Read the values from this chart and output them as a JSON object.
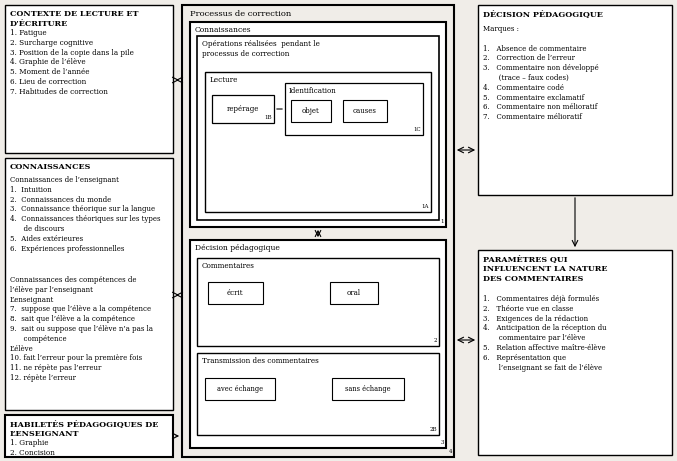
{
  "bg_color": "#f0ede8",
  "fig_width": 6.77,
  "fig_height": 4.61,
  "left_top_box": {
    "title": "CONTEXTE DE LECTURE ET\nD’ÉCRITURE",
    "items": "1. Fatigue\n2. Surcharge cognitive\n3. Position de la copie dans la pile\n4. Graphie de l’élève\n5. Moment de l’année\n6. Lieu de correction\n7. Habitudes de correction"
  },
  "left_mid_box": {
    "title": "CONNAISSANCES",
    "content_a": "Connaissances de l’enseignant\n1.  Intuition\n2.  Connaissances du monde\n3.  Connaissance théorique sur la langue\n4.  Connaissances théoriques sur les types\n      de discours\n5.  Aides extérieures\n6.  Expériences professionnelles",
    "content_b": "Connaissances des compétences de\nl’élève par l’enseignant\nL’enseignant\n7.  suppose que l’élève a la compétence\n8.  sait que l’élève a la compétence\n9.  sait ou suppose que l’élève n’a pas la\n      compétence\nL’élève\n10. fait l’erreur pour la première fois\n11. ne répète pas l’erreur\n12. répète l’erreur"
  },
  "left_bot_box": {
    "title": "HABILETÉS PÉDAGOGIQUES DE\nL’ENSEIGNANT",
    "items": "1. Graphie\n2. Concision"
  },
  "center_title": "Processus de correction",
  "connaissances_title": "Connaissances",
  "operations_title": "Opérations réalisées  pendant le\nprocessus de correction",
  "lecture_title": "Lecture",
  "reperage_label": "repérage",
  "identification_title": "Identification",
  "objet_label": "objet",
  "causes_label": "causes",
  "label_1B": "1B",
  "label_1C": "1C",
  "label_1A": "1A",
  "label_1": "1",
  "decision_ped_title": "Décision pédagogique",
  "commentaires_title": "Commentaires",
  "ecrit_label": "écrit",
  "oral_label": "oral",
  "label_2": "2",
  "transmission_title": "Transmission des commentaires",
  "avec_label": "avec échange",
  "sans_label": "sans échange",
  "label_2B": "2B",
  "label_3": "3",
  "label_4": "4",
  "right_top_box": {
    "title": "DÉCISION PÉDAGOGIQUE",
    "content": "Marques :\n\n1.   Absence de commentaire\n2.   Correction de l’erreur\n3.   Commentaire non développé\n       (trace – faux codes)\n4.   Commentaire codé\n5.   Commentaire exclamatif\n6.   Commentaire non mélioratif\n7.   Commentaire mélioratif"
  },
  "right_bot_box": {
    "title": "PARAMÈTRES QUI\nINFLUENCENT LA NATURE\nDES COMMENTAIRES",
    "content": "1.   Commentaires déjà formulés\n2.   Théorie vue en classe\n3.   Exigences de la rédaction\n4.   Anticipation de la réception du\n       commentaire par l’élève\n5.   Relation affective maître-élève\n6.   Représentation que\n       l’enseignant se fait de l’élève"
  }
}
